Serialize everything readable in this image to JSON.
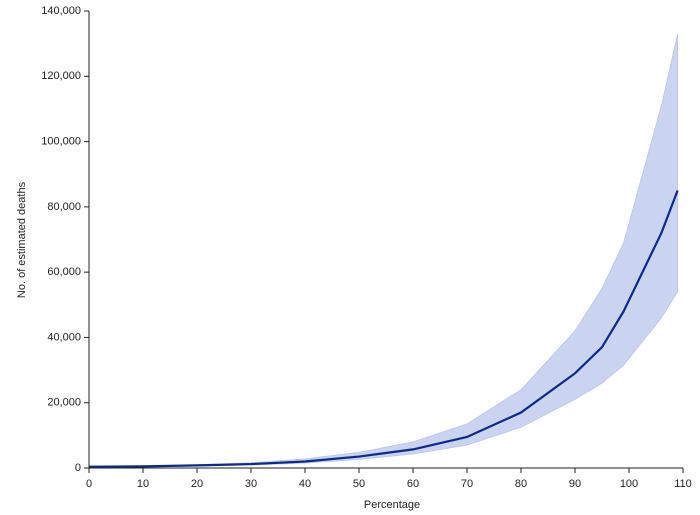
{
  "chart_data": {
    "type": "line",
    "x_label": "Percentage",
    "y_label": "No. of estimated deaths",
    "x": [
      0,
      10,
      20,
      30,
      40,
      50,
      60,
      70,
      80,
      90,
      95,
      99,
      106,
      109
    ],
    "line": {
      "color": "#0a2a8c",
      "values": [
        400,
        500,
        800,
        1200,
        2000,
        3500,
        5700,
        9500,
        17000,
        29000,
        37000,
        48000,
        72000,
        85000
      ]
    },
    "band": {
      "color": "#c5cfee",
      "lower": [
        300,
        400,
        600,
        900,
        1500,
        2600,
        4300,
        7000,
        12500,
        21000,
        26000,
        31500,
        46000,
        54000
      ],
      "upper": [
        500,
        650,
        1000,
        1600,
        2800,
        4800,
        8000,
        13500,
        24000,
        42000,
        55000,
        69000,
        111000,
        133000
      ]
    },
    "xlim": [
      0,
      110
    ],
    "xticks": [
      0,
      10,
      20,
      30,
      40,
      50,
      60,
      70,
      80,
      90,
      100,
      110
    ],
    "ylim": [
      0,
      140000
    ],
    "yticks": [
      0,
      {
        "value": 20000,
        "label": "20,000"
      },
      {
        "value": 40000,
        "label": "40,000"
      },
      {
        "value": 60000,
        "label": "60,000"
      },
      {
        "value": 80000,
        "label": "80,000"
      },
      {
        "value": 100000,
        "label": "100,000"
      },
      {
        "value": 120000,
        "label": "120,000"
      },
      {
        "value": 140000,
        "label": "140,000"
      }
    ]
  }
}
